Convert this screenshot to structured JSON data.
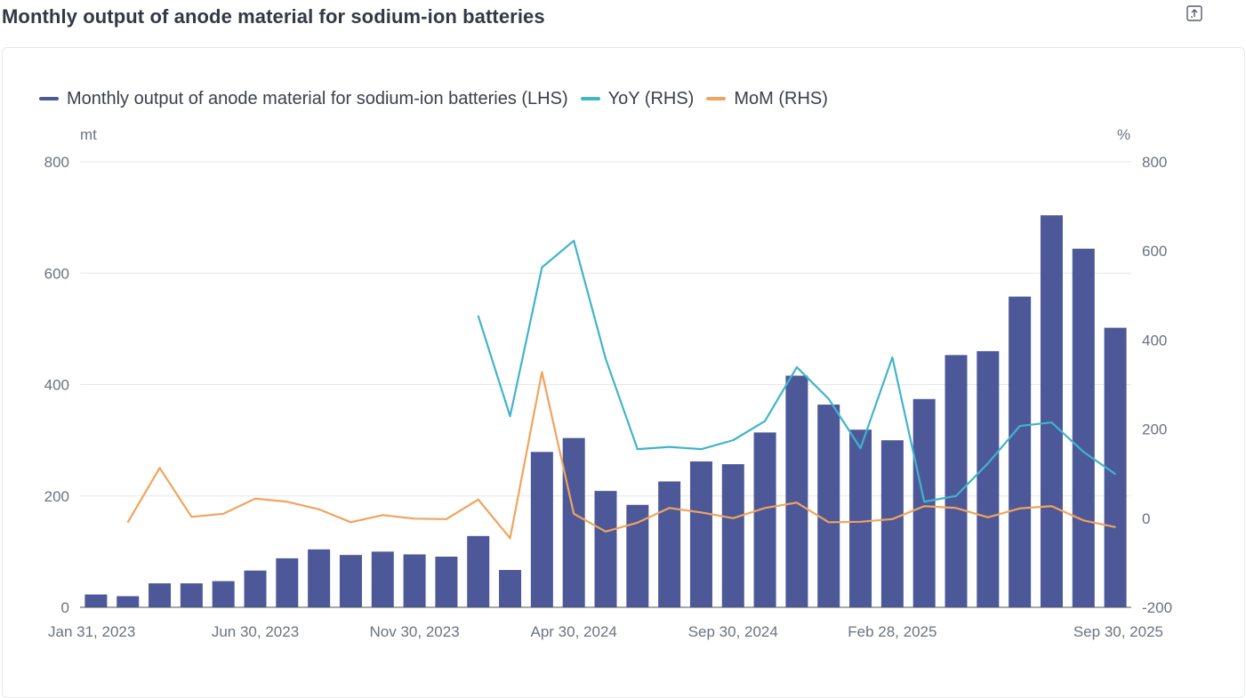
{
  "title": "Monthly output of anode material for sodium-ion batteries",
  "export_icon": "export-icon",
  "colors": {
    "bar": "#4d5898",
    "yoy": "#40b4c9",
    "mom": "#f0a45d",
    "grid": "#e5e7eb",
    "axis_text": "#6b7280"
  },
  "legend": {
    "output": "Monthly  output of anode material for sodium-ion batteries (LHS)",
    "yoy": "YoY (RHS)",
    "mom": "MoM (RHS)"
  },
  "units": {
    "left": "mt",
    "right": "%"
  },
  "chart_data": {
    "type": "bar",
    "categories": [
      "Jan 31, 2023",
      "Feb 28, 2023",
      "Mar 31, 2023",
      "Apr 30, 2023",
      "May 31, 2023",
      "Jun 30, 2023",
      "Jul 31, 2023",
      "Aug 31, 2023",
      "Sep 30, 2023",
      "Oct 31, 2023",
      "Nov 30, 2023",
      "Dec 31, 2023",
      "Jan 31, 2024",
      "Feb 29, 2024",
      "Mar 31, 2024",
      "Apr 30, 2024",
      "May 31, 2024",
      "Jun 30, 2024",
      "Jul 31, 2024",
      "Aug 31, 2024",
      "Sep 30, 2024",
      "Oct 31, 2024",
      "Nov 30, 2024",
      "Dec 31, 2024",
      "Jan 31, 2025",
      "Feb 28, 2025",
      "Mar 31, 2025",
      "Apr 30, 2025",
      "May 31, 2025",
      "Jun 30, 2025",
      "Jul 31, 2025",
      "Aug 31, 2025",
      "Sep 30, 2025"
    ],
    "x_tick_labels": [
      "Jan 31, 2023",
      "Jun 30, 2023",
      "Nov 30, 2023",
      "Apr 30, 2024",
      "Sep 30, 2024",
      "Feb 28, 2025",
      "Sep 30, 2025"
    ],
    "series": [
      {
        "name": "Monthly  output of anode material for sodium-ion batteries (LHS)",
        "type": "bar",
        "axis": "left",
        "values": [
          23,
          20,
          43,
          43,
          47,
          66,
          88,
          104,
          94,
          100,
          95,
          91,
          128,
          67,
          279,
          304,
          209,
          184,
          226,
          262,
          257,
          314,
          416,
          364,
          319,
          300,
          374,
          453,
          460,
          558,
          704,
          644,
          502
        ]
      },
      {
        "name": "YoY (RHS)",
        "type": "line",
        "axis": "right",
        "values": [
          null,
          null,
          null,
          null,
          null,
          null,
          null,
          null,
          null,
          null,
          null,
          null,
          454,
          229,
          563,
          623,
          358,
          155,
          160,
          155,
          175,
          218,
          339,
          268,
          157,
          361,
          37,
          50,
          123,
          207,
          215,
          149,
          99
        ]
      },
      {
        "name": "MoM (RHS)",
        "type": "line",
        "axis": "right",
        "values": [
          null,
          -9,
          113,
          3,
          10,
          44,
          37,
          20,
          -9,
          7,
          -1,
          -2,
          42,
          -45,
          328,
          10,
          -30,
          -10,
          23,
          13,
          0,
          23,
          35,
          -9,
          -8,
          -2,
          27,
          23,
          2,
          22,
          27,
          -5,
          -20
        ]
      }
    ],
    "y_left": {
      "min": 0,
      "max": 800,
      "ticks": [
        0,
        200,
        400,
        600,
        800
      ]
    },
    "y_right": {
      "min": -200,
      "max": 800,
      "ticks": [
        -200,
        0,
        200,
        400,
        600,
        800
      ]
    },
    "grid": true,
    "legend_position": "top-left"
  }
}
